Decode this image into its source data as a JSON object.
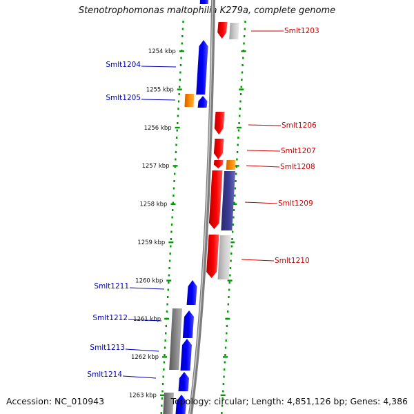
{
  "title": "Stenotrophomonas maltophilia K279a, complete genome",
  "footer": {
    "accession_label": "Accession:",
    "accession": "NC_010943",
    "topology_label": "Topology:",
    "topology": "circular",
    "length_label": "Length:",
    "length": "4,851,126 bp",
    "genes_label": "Genes:",
    "genes": "4,386"
  },
  "colors": {
    "forward_gene": "#0000ff",
    "reverse_gene": "#ff0000",
    "rna_gene": "#ff8c00",
    "orf_grey": "#808080",
    "orf_purple": "#3c3c96",
    "backbone": "#9a9a9a",
    "ruler_dots": "#009900",
    "forward_label": "#0000bb",
    "reverse_label": "#cc0000"
  },
  "ruler": [
    {
      "kbp": 1254,
      "label": "1254 kbp"
    },
    {
      "kbp": 1255,
      "label": "1255 kbp"
    },
    {
      "kbp": 1256,
      "label": "1256 kbp"
    },
    {
      "kbp": 1257,
      "label": "1257 kbp"
    },
    {
      "kbp": 1258,
      "label": "1258 kbp"
    },
    {
      "kbp": 1259,
      "label": "1259 kbp"
    },
    {
      "kbp": 1260,
      "label": "1260 kbp"
    },
    {
      "kbp": 1261,
      "label": "1261 kbp"
    },
    {
      "kbp": 1262,
      "label": "1262 kbp"
    },
    {
      "kbp": 1263,
      "label": "1263 kbp"
    }
  ],
  "labeled_features": [
    {
      "name": "Smlt1203",
      "strand": "reverse"
    },
    {
      "name": "Smlt1204",
      "strand": "forward"
    },
    {
      "name": "Smlt1205",
      "strand": "forward"
    },
    {
      "name": "Smlt1206",
      "strand": "reverse"
    },
    {
      "name": "Smlt1207",
      "strand": "reverse"
    },
    {
      "name": "Smlt1208",
      "strand": "reverse"
    },
    {
      "name": "Smlt1209",
      "strand": "reverse"
    },
    {
      "name": "Smlt1210",
      "strand": "reverse"
    },
    {
      "name": "Smlt1211",
      "strand": "forward"
    },
    {
      "name": "Smlt1212",
      "strand": "forward"
    },
    {
      "name": "Smlt1213",
      "strand": "forward"
    },
    {
      "name": "Smlt1214",
      "strand": "forward"
    }
  ]
}
